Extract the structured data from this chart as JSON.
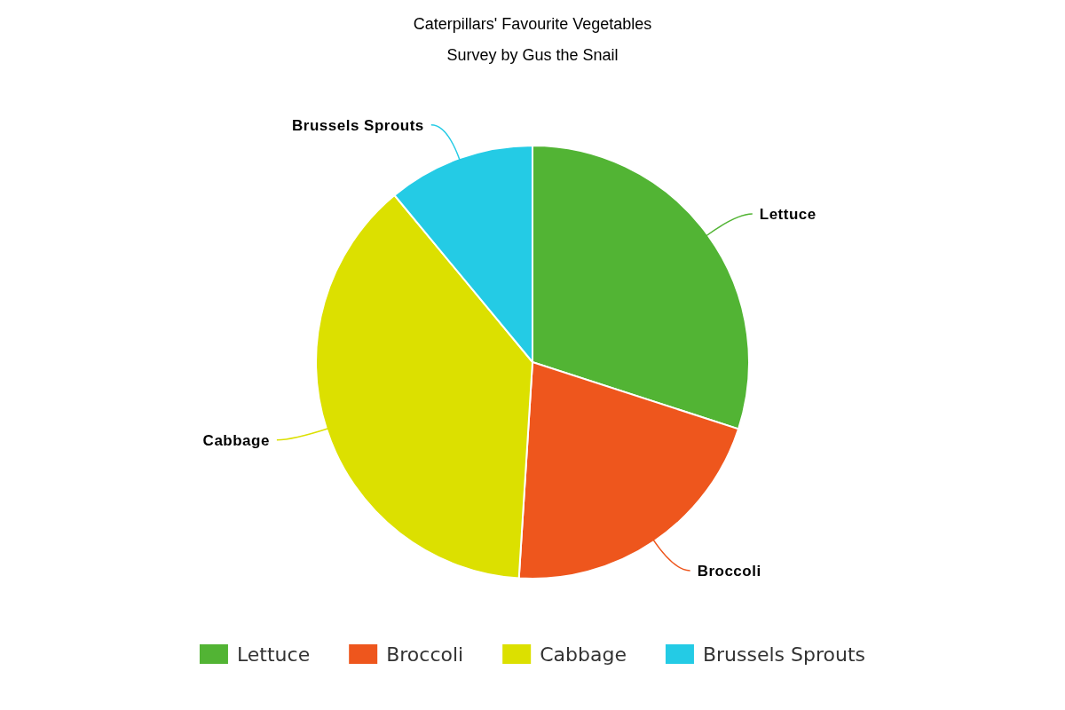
{
  "chart_data": {
    "type": "pie",
    "title": "Caterpillars' Favourite Vegetables",
    "subtitle": "Survey by Gus the Snail",
    "categories": [
      "Lettuce",
      "Broccoli",
      "Cabbage",
      "Brussels Sprouts"
    ],
    "values": [
      30,
      21,
      38,
      11
    ],
    "colors": [
      "#52b434",
      "#ee561d",
      "#dce000",
      "#24cbe5"
    ],
    "legend": "bottom"
  }
}
